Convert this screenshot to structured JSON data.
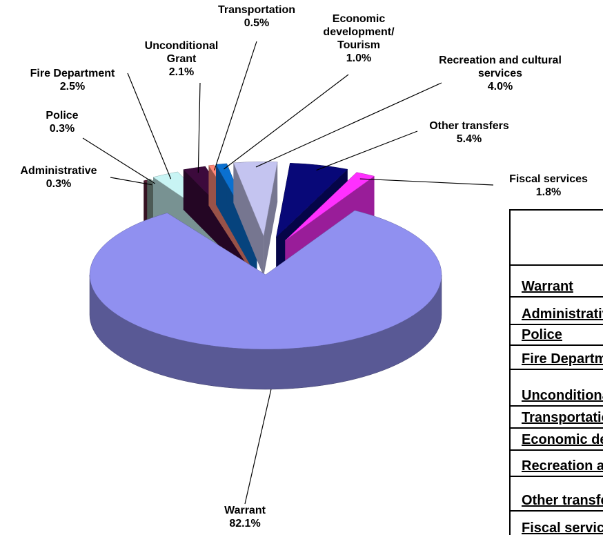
{
  "chart_data": {
    "type": "pie",
    "categories": [
      "Warrant",
      "Administrative",
      "Police",
      "Fire Department",
      "Unconditional Grant",
      "Transportation",
      "Economic development/ Tourism",
      "Recreation and cultural services",
      "Other transfers",
      "Fiscal services"
    ],
    "values": [
      82.1,
      0.3,
      0.3,
      2.5,
      2.1,
      0.5,
      1.0,
      4.0,
      5.4,
      1.8
    ],
    "value_labels": [
      "82.1%",
      "0.3%",
      "0.3%",
      "2.5%",
      "2.1%",
      "0.5%",
      "1.0%",
      "4.0%",
      "5.4%",
      "1.8%"
    ],
    "colors": [
      "#9090f0",
      "#5a2038",
      "#809890",
      "#c8f4f4",
      "#3c0a3c",
      "#ff8878",
      "#0a70d0",
      "#c4c4f0",
      "#080878",
      "#ff30ff"
    ]
  }
}
